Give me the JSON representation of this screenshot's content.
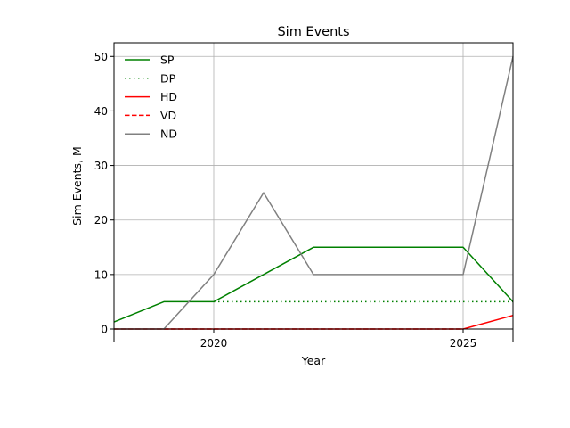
{
  "chart_data": {
    "type": "line",
    "title": "Sim Events",
    "xlabel": "Year",
    "ylabel": "Sim Events, M",
    "xlim": [
      2018,
      2026
    ],
    "ylim": [
      0,
      52.5
    ],
    "x_ticks": [
      2020,
      2025
    ],
    "y_ticks": [
      0,
      10,
      20,
      30,
      40,
      50
    ],
    "grid": true,
    "legend_position": "top-left",
    "series": [
      {
        "name": "SP",
        "color": "#008000",
        "style": "solid",
        "points": [
          [
            2018,
            1.3
          ],
          [
            2019,
            5
          ],
          [
            2020,
            5
          ],
          [
            2022,
            15
          ],
          [
            2025,
            15
          ],
          [
            2026,
            5
          ]
        ]
      },
      {
        "name": "DP",
        "color": "#008000",
        "style": "dotted",
        "points": [
          [
            2020,
            5
          ],
          [
            2026,
            5
          ]
        ]
      },
      {
        "name": "HD",
        "color": "#ff0000",
        "style": "solid",
        "points": [
          [
            2018,
            0
          ],
          [
            2025,
            0
          ],
          [
            2026,
            2.5
          ]
        ]
      },
      {
        "name": "VD",
        "color": "#ff0000",
        "style": "dashed",
        "points": [
          [
            2018,
            0
          ],
          [
            2025,
            0
          ]
        ]
      },
      {
        "name": "ND",
        "color": "#808080",
        "style": "solid",
        "points": [
          [
            2018,
            0
          ],
          [
            2019,
            0
          ],
          [
            2020,
            10
          ],
          [
            2021,
            25
          ],
          [
            2022,
            10
          ],
          [
            2025,
            10
          ],
          [
            2026,
            50
          ]
        ]
      }
    ]
  }
}
